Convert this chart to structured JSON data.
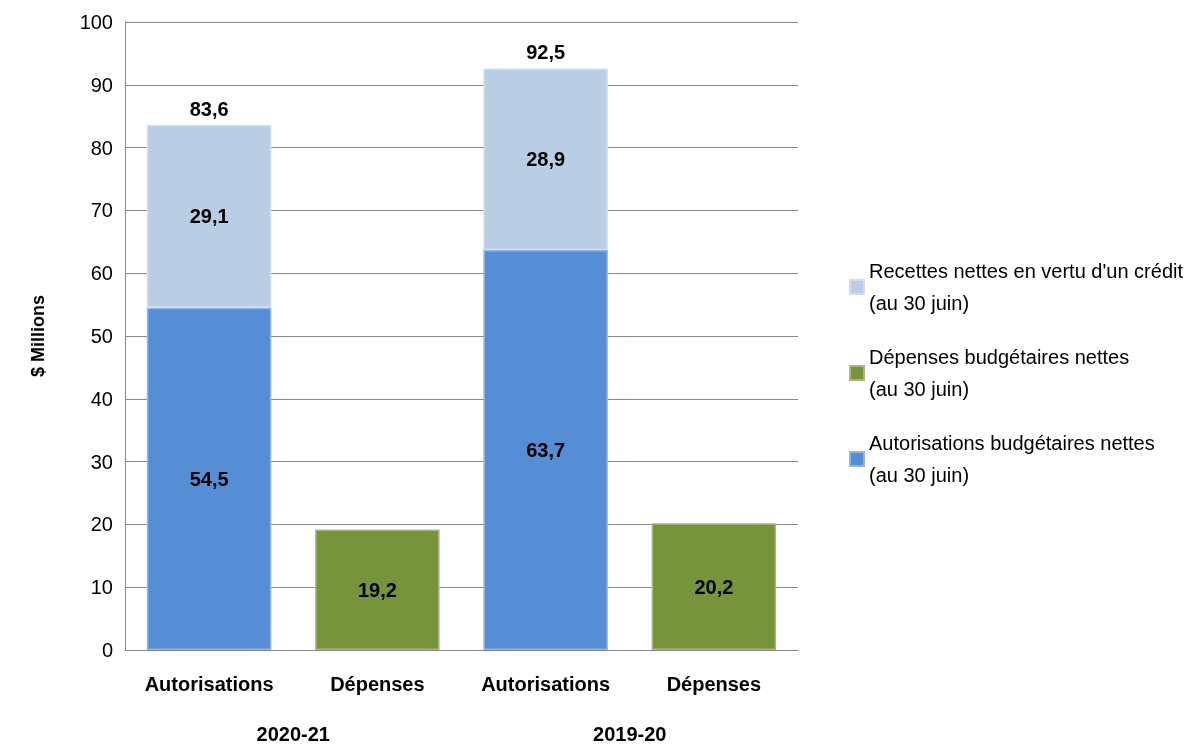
{
  "chart_data": {
    "type": "bar",
    "stacked": true,
    "ylabel": "$ Millions",
    "categories": [
      "Autorisations",
      "Dépenses",
      "Autorisations",
      "Dépenses"
    ],
    "series": [
      {
        "name": "Autorisations budgétaires nettes\n(au 30 juin)",
        "color": "#558ed5",
        "values": [
          54.5,
          null,
          63.7,
          null
        ],
        "value_labels": [
          "54,5",
          null,
          "63,7",
          null
        ]
      },
      {
        "name": "Dépenses budgétaires nettes\n(au 30 juin)",
        "color": "#77933c",
        "values": [
          null,
          19.2,
          null,
          20.2
        ],
        "value_labels": [
          null,
          "19,2",
          null,
          "20,2"
        ]
      },
      {
        "name": "Recettes nettes en vertu d'un crédit\n(au 30 juin)",
        "color": "#b9cde5",
        "values": [
          29.1,
          null,
          28.9,
          null
        ],
        "value_labels": [
          "29,1",
          null,
          "28,9",
          null
        ]
      }
    ],
    "totals": [
      "83,6",
      null,
      "92,5",
      null
    ],
    "annotations": [
      "2020-21",
      "2019-20"
    ],
    "ylim": [
      0,
      100
    ],
    "yticks": [
      0,
      10,
      20,
      30,
      40,
      50,
      60,
      70,
      80,
      90,
      100
    ],
    "grid": "y",
    "legend": "right"
  }
}
